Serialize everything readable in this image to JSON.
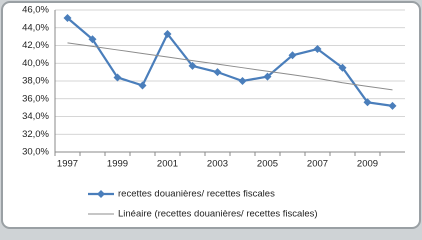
{
  "chart_data": {
    "type": "line",
    "categories": [
      "1997",
      null,
      "1999",
      null,
      "2001",
      null,
      "2003",
      null,
      "2005",
      null,
      "2007",
      null,
      "2009",
      null
    ],
    "series": [
      {
        "name": "recettes douanières/ recettes fiscales",
        "color": "#4a7ebb",
        "marker": true,
        "values": [
          45.1,
          42.7,
          38.4,
          37.5,
          43.3,
          39.7,
          39.0,
          38.0,
          38.5,
          40.9,
          41.6,
          39.5,
          35.6,
          35.2
        ]
      },
      {
        "name": "Linéaire (recettes douanières/ recettes fiscales)",
        "color": "#8c8c8c",
        "marker": false,
        "values": [
          42.3,
          41.9,
          41.5,
          41.1,
          40.7,
          40.3,
          39.9,
          39.5,
          39.1,
          38.7,
          38.3,
          37.8,
          37.4,
          37.0
        ]
      }
    ],
    "ylim": [
      30,
      46
    ],
    "yticks": [
      {
        "value": 30,
        "label": "30,0%"
      },
      {
        "value": 32,
        "label": "32,0%"
      },
      {
        "value": 34,
        "label": "34,0%"
      },
      {
        "value": 36,
        "label": "36,0%"
      },
      {
        "value": 38,
        "label": "38,0%"
      },
      {
        "value": 40,
        "label": "40,0%"
      },
      {
        "value": 42,
        "label": "42,0%"
      },
      {
        "value": 44,
        "label": "44,0%"
      },
      {
        "value": 46,
        "label": "46,0%"
      }
    ],
    "grid": true,
    "legend": "bottom"
  }
}
